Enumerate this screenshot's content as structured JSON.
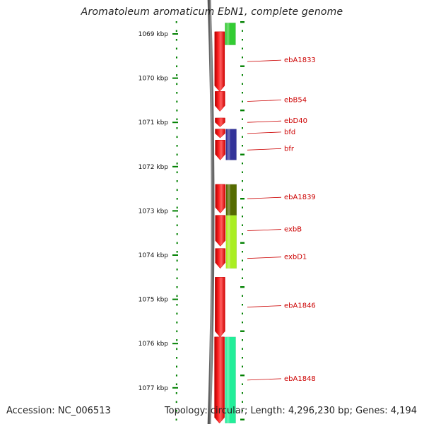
{
  "title": "Aromatoleum aromaticum EbN1, complete genome",
  "accession": "Accession: NC_006513",
  "topology": "Topology: circular; Length: 4,296,230 bp; Genes: 4,194",
  "ruler": {
    "ticks": [
      "1069 kbp",
      "1070 kbp",
      "1071 kbp",
      "1072 kbp",
      "1073 kbp",
      "1074 kbp",
      "1075 kbp",
      "1076 kbp",
      "1077 kbp"
    ]
  },
  "colors": {
    "backbone": "#808080",
    "gene": "#ff0000",
    "label": "#cc0000",
    "tick": "#008000",
    "green": "#33cc33",
    "purple": "#333399",
    "olive": "#556b00",
    "lime": "#aaee22",
    "teal": "#22ee99"
  },
  "genes": [
    {
      "name": "ebA1833",
      "strand": "reverse",
      "start_kbp": 1068.95,
      "end_kbp": 1070.3
    },
    {
      "name": "ebB54",
      "strand": "reverse",
      "start_kbp": 1070.3,
      "end_kbp": 1070.75
    },
    {
      "name": "ebD40",
      "strand": "reverse",
      "start_kbp": 1070.9,
      "end_kbp": 1071.1
    },
    {
      "name": "bfd",
      "strand": "reverse",
      "start_kbp": 1071.15,
      "end_kbp": 1071.35
    },
    {
      "name": "bfr",
      "strand": "reverse",
      "start_kbp": 1071.4,
      "end_kbp": 1071.85
    },
    {
      "name": "ebA1839",
      "strand": "reverse",
      "start_kbp": 1072.4,
      "end_kbp": 1073.05
    },
    {
      "name": "exbB",
      "strand": "reverse",
      "start_kbp": 1073.1,
      "end_kbp": 1073.8
    },
    {
      "name": "exbD1",
      "strand": "reverse",
      "start_kbp": 1073.85,
      "end_kbp": 1074.3
    },
    {
      "name": "ebA1846",
      "strand": "reverse",
      "start_kbp": 1074.5,
      "end_kbp": 1075.85
    },
    {
      "name": "ebA1848",
      "strand": "reverse",
      "start_kbp": 1075.85,
      "end_kbp": 1077.8
    }
  ],
  "bars": [
    {
      "name": "green-segment",
      "color": "green",
      "start_kbp": 1068.75,
      "end_kbp": 1069.25
    },
    {
      "name": "purple-segment",
      "color": "purple",
      "start_kbp": 1071.15,
      "end_kbp": 1071.85
    },
    {
      "name": "olive-segment",
      "color": "olive",
      "start_kbp": 1072.4,
      "end_kbp": 1073.1
    },
    {
      "name": "lime-segment",
      "color": "lime",
      "start_kbp": 1073.1,
      "end_kbp": 1074.3
    },
    {
      "name": "teal-segment",
      "color": "teal",
      "start_kbp": 1075.85,
      "end_kbp": 1077.8
    }
  ]
}
